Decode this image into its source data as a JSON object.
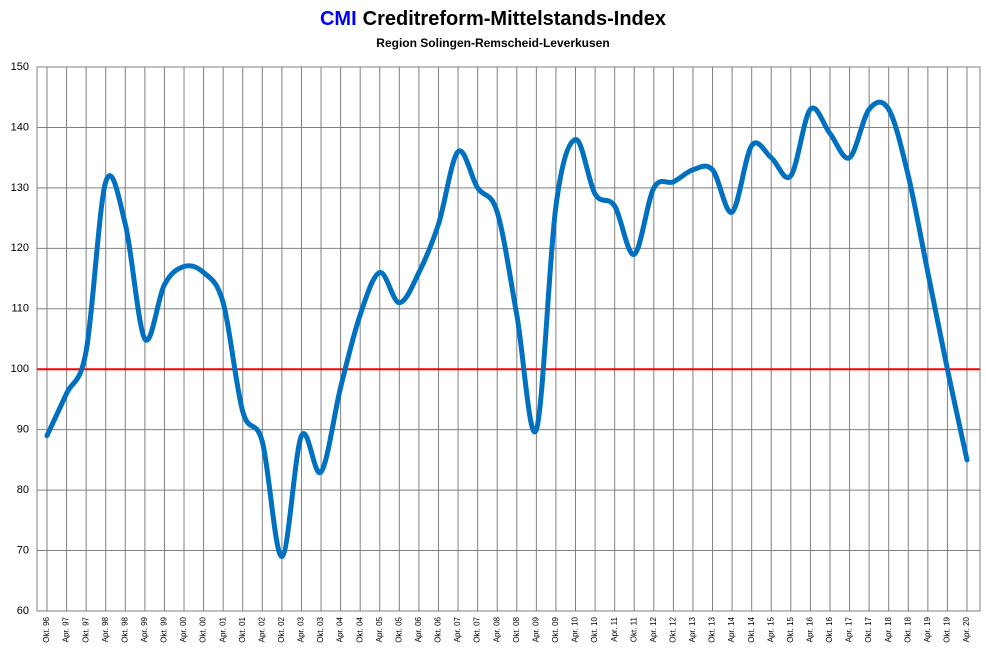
{
  "chart_data": {
    "type": "line",
    "title_highlight": "CMI",
    "title": "Creditreform-Mittelstands-Index",
    "subtitle": "Region Solingen-Remscheid-Leverkusen",
    "categories": [
      "Okt. 96",
      "Apr. 97",
      "Okt. 97",
      "Apr. 98",
      "Okt. 98",
      "Apr. 99",
      "Okt. 99",
      "Apr. 00",
      "Okt. 00",
      "Apr. 01",
      "Okt. 01",
      "Apr. 02",
      "Okt. 02",
      "Apr. 03",
      "Okt. 03",
      "Apr. 04",
      "Okt. 04",
      "Apr. 05",
      "Okt. 05",
      "Apr. 06",
      "Okt. 06",
      "Apr. 07",
      "Okt. 07",
      "Apr. 08",
      "Okt. 08",
      "Apr. 09",
      "Okt. 09",
      "Apr. 10",
      "Okt. 10",
      "Apr. 11",
      "Okt. 11",
      "Apr. 12",
      "Okt. 12",
      "Apr. 13",
      "Okt. 13",
      "Apr. 14",
      "Okt. 14",
      "Apr. 15",
      "Okt. 15",
      "Apr. 16",
      "Okt. 16",
      "Apr. 17",
      "Okt. 17",
      "Apr. 18",
      "Okt. 18",
      "Apr. 19",
      "Okt. 19",
      "Apr. 20"
    ],
    "series": [
      {
        "name": "CMI",
        "color": "#0070c0",
        "values": [
          89,
          96,
          103,
          131,
          124,
          105,
          114,
          117,
          116,
          111,
          93,
          88,
          69,
          89,
          83,
          97,
          109,
          116,
          111,
          116,
          124,
          136,
          130,
          126,
          109,
          90,
          127,
          138,
          129,
          127,
          119,
          130,
          131,
          133,
          133,
          126,
          137,
          135,
          132,
          143,
          139,
          135,
          143,
          143,
          132,
          116,
          100,
          85
        ]
      }
    ],
    "reference_line": {
      "value": 100,
      "color": "#ff0000"
    },
    "ylim": [
      60,
      150
    ],
    "yticks": [
      60,
      70,
      80,
      90,
      100,
      110,
      120,
      130,
      140,
      150
    ],
    "grid": true
  }
}
